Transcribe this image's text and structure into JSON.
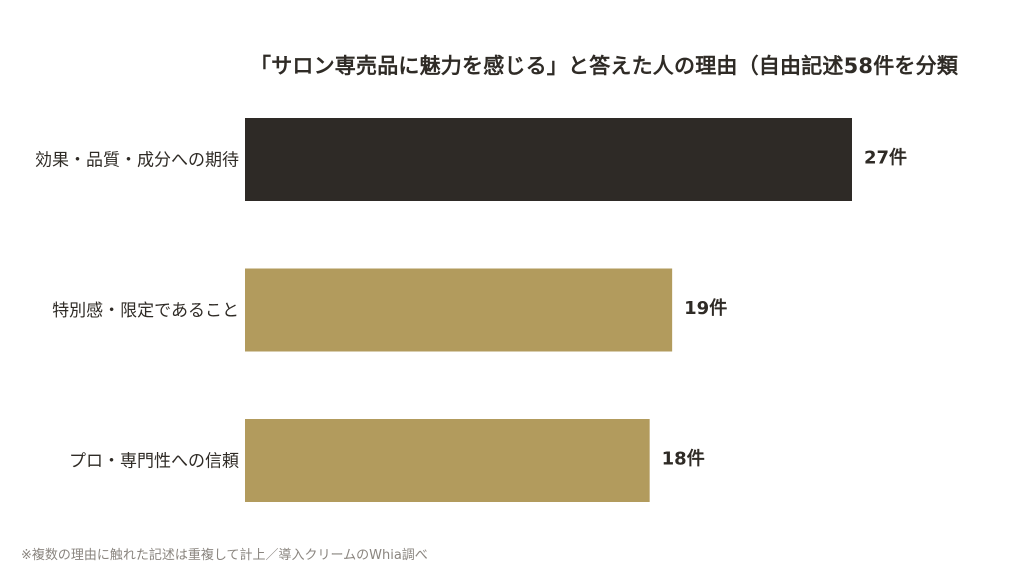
{
  "chart_data": {
    "type": "bar",
    "orientation": "horizontal",
    "title": "「サロン専売品に魅力を感じる」と答えた人の理由（自由記述58件を分類",
    "categories": [
      "効果・品質・成分への期待",
      "特別感・限定であること",
      "プロ・専門性への信頼"
    ],
    "values": [
      27,
      19,
      18
    ],
    "value_labels": [
      "27件",
      "19件",
      "18件"
    ],
    "xlabel": "",
    "ylabel": "",
    "xlim": [
      0,
      35
    ],
    "grid": false,
    "legend": "none",
    "colors": {
      "highlight": "#2e2a26",
      "default": "#b29b5d",
      "text": "#2f2b26"
    },
    "highlight_index": 0
  },
  "footnote": "※複数の理由に触れた記述は重複して計上／導入クリームのWhia調べ"
}
